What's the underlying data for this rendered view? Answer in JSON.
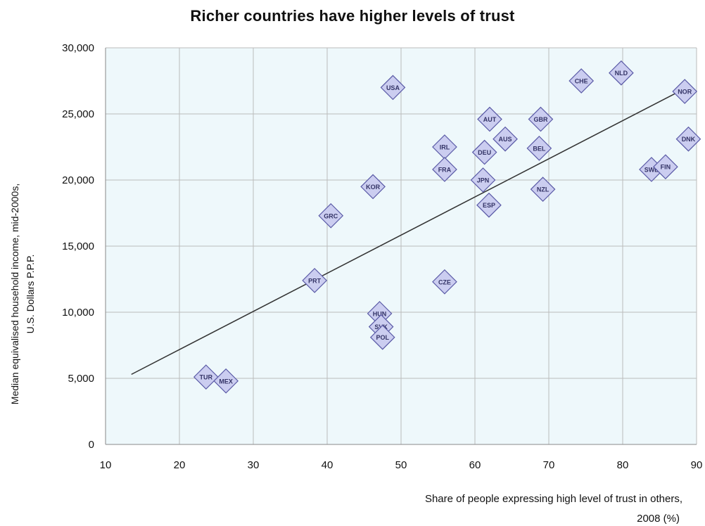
{
  "chart_data": {
    "type": "scatter",
    "title": "Richer countries have higher levels of trust",
    "xlabel_lines": [
      "Share of people expressing high level of  trust  in others,",
      "2008 (%)"
    ],
    "ylabel_lines": [
      "Median equivalised household income, mid-2000s,",
      "U.S. Dollars P.P.P."
    ],
    "xlim": [
      10,
      90
    ],
    "ylim": [
      0,
      30000
    ],
    "x_ticks": [
      10,
      20,
      30,
      40,
      50,
      60,
      70,
      80,
      90
    ],
    "x_tick_labels": [
      "10",
      "20",
      "30",
      "40",
      "50",
      "60",
      "70",
      "80",
      "90"
    ],
    "y_ticks": [
      0,
      5000,
      10000,
      15000,
      20000,
      25000,
      30000
    ],
    "y_tick_labels": [
      "0",
      "5,000",
      "10,000",
      "15,000",
      "20,000",
      "25,000",
      "30,000"
    ],
    "grid": true,
    "colors": {
      "plot_background": "#eef8fb",
      "grid": "#bbbbbb",
      "marker_fill": "#cbcdf0",
      "marker_stroke": "#5a5aa6",
      "trend": "#333333"
    },
    "points": [
      {
        "label": "TUR",
        "x": 23.6,
        "y": 5100
      },
      {
        "label": "MEX",
        "x": 26.3,
        "y": 4800
      },
      {
        "label": "PRT",
        "x": 38.3,
        "y": 12400
      },
      {
        "label": "GRC",
        "x": 40.5,
        "y": 17300
      },
      {
        "label": "KOR",
        "x": 46.2,
        "y": 19500
      },
      {
        "label": "USA",
        "x": 48.9,
        "y": 27000
      },
      {
        "label": "HUN",
        "x": 47.1,
        "y": 9900
      },
      {
        "label": "SVK",
        "x": 47.3,
        "y": 8900
      },
      {
        "label": "POL",
        "x": 47.5,
        "y": 8100
      },
      {
        "label": "IRL",
        "x": 55.9,
        "y": 22500
      },
      {
        "label": "FRA",
        "x": 55.9,
        "y": 20800
      },
      {
        "label": "CZE",
        "x": 55.9,
        "y": 12300
      },
      {
        "label": "DEU",
        "x": 61.3,
        "y": 22100
      },
      {
        "label": "JPN",
        "x": 61.1,
        "y": 20000
      },
      {
        "label": "ESP",
        "x": 61.9,
        "y": 18100
      },
      {
        "label": "AUT",
        "x": 62.0,
        "y": 24600
      },
      {
        "label": "AUS",
        "x": 64.1,
        "y": 23100
      },
      {
        "label": "GBR",
        "x": 68.9,
        "y": 24600
      },
      {
        "label": "BEL",
        "x": 68.7,
        "y": 22400
      },
      {
        "label": "NZL",
        "x": 69.2,
        "y": 19300
      },
      {
        "label": "CHE",
        "x": 74.4,
        "y": 27500
      },
      {
        "label": "NLD",
        "x": 79.8,
        "y": 28100
      },
      {
        "label": "SWE",
        "x": 83.9,
        "y": 20800
      },
      {
        "label": "FIN",
        "x": 85.8,
        "y": 21000
      },
      {
        "label": "NOR",
        "x": 88.4,
        "y": 26700
      },
      {
        "label": "DNK",
        "x": 88.9,
        "y": 23100
      }
    ],
    "trend_line": {
      "x": [
        13.5,
        88.0
      ],
      "y": [
        5300,
        26800
      ]
    }
  }
}
